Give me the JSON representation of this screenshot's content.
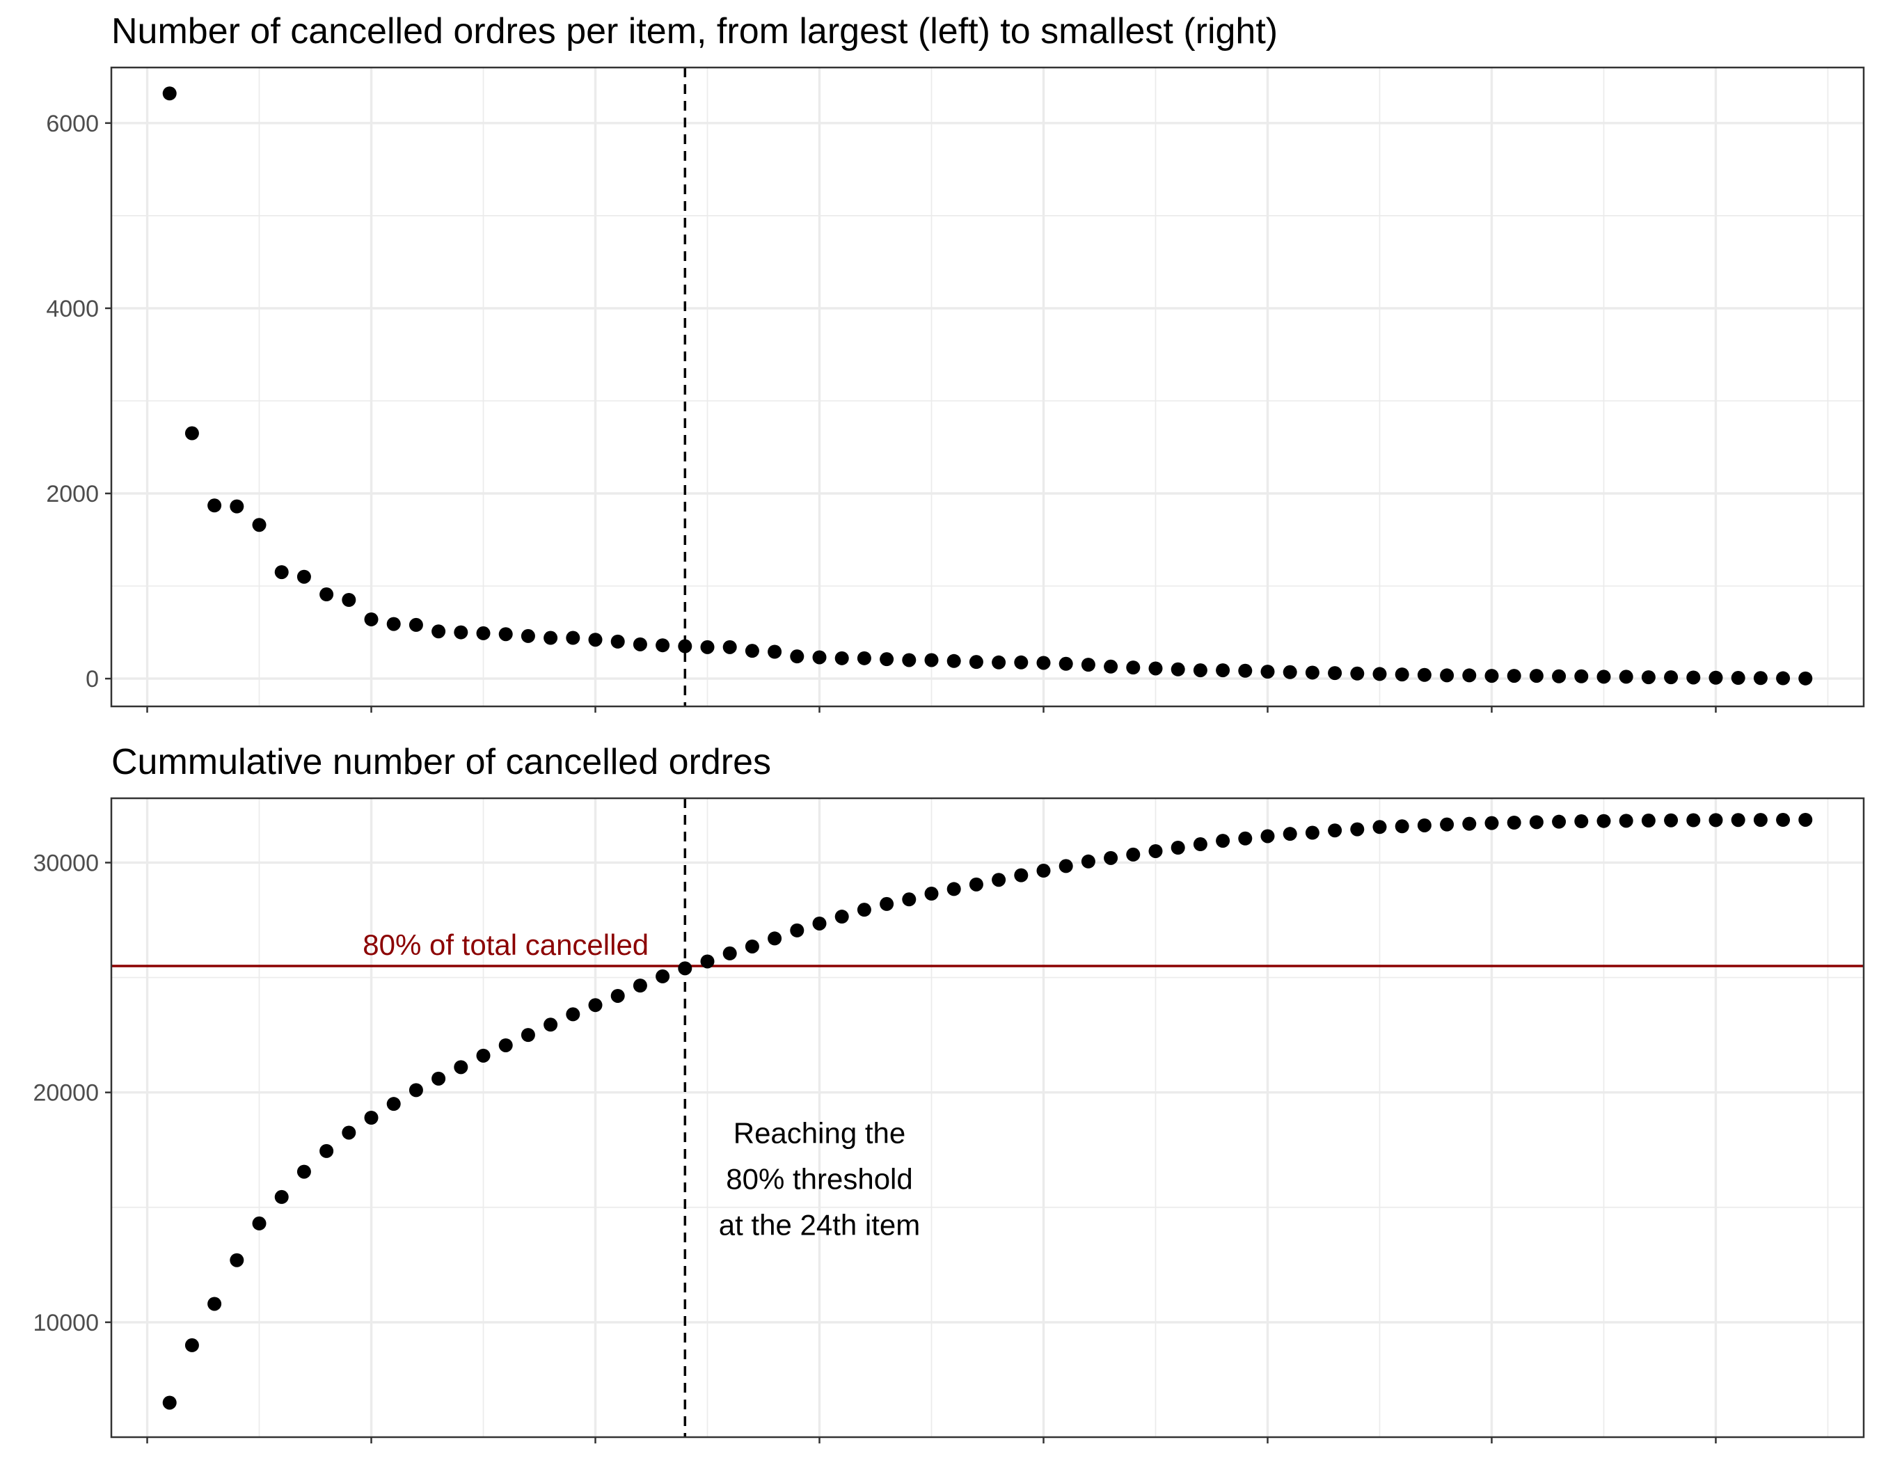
{
  "chart_data": [
    {
      "type": "scatter",
      "title": "Number of cancelled ordres per item, from largest (left) to smallest (right)",
      "xlabel": "",
      "ylabel": "",
      "x_tick_labels_shown": false,
      "grid": true,
      "xlim": [
        -1.6,
        76.6
      ],
      "ylim": [
        -300,
        6600
      ],
      "yticks": [
        0,
        2000,
        4000,
        6000
      ],
      "ytick_labels": [
        "0",
        "2000",
        "4000",
        "6000"
      ],
      "reference_lines": [
        {
          "orientation": "vertical",
          "x": 24,
          "style": "dashed",
          "color": "#000000"
        }
      ],
      "x": [
        1,
        2,
        3,
        4,
        5,
        6,
        7,
        8,
        9,
        10,
        11,
        12,
        13,
        14,
        15,
        16,
        17,
        18,
        19,
        20,
        21,
        22,
        23,
        24,
        25,
        26,
        27,
        28,
        29,
        30,
        31,
        32,
        33,
        34,
        35,
        36,
        37,
        38,
        39,
        40,
        41,
        42,
        43,
        44,
        45,
        46,
        47,
        48,
        49,
        50,
        51,
        52,
        53,
        54,
        55,
        56,
        57,
        58,
        59,
        60,
        61,
        62,
        63,
        64,
        65,
        66,
        67,
        68,
        69,
        70,
        71,
        72,
        73,
        74
      ],
      "values": [
        6320,
        2650,
        1870,
        1860,
        1660,
        1150,
        1100,
        910,
        850,
        640,
        590,
        580,
        510,
        500,
        490,
        480,
        460,
        440,
        440,
        420,
        400,
        370,
        360,
        350,
        340,
        340,
        300,
        290,
        240,
        230,
        220,
        220,
        210,
        200,
        200,
        190,
        180,
        175,
        175,
        170,
        160,
        150,
        130,
        120,
        110,
        100,
        90,
        90,
        85,
        75,
        70,
        65,
        60,
        55,
        50,
        45,
        40,
        35,
        35,
        30,
        30,
        30,
        25,
        25,
        20,
        20,
        15,
        15,
        12,
        10,
        8,
        6,
        4,
        2
      ]
    },
    {
      "type": "scatter",
      "title": "Cummulative number of cancelled ordres",
      "xlabel": "",
      "ylabel": "",
      "x_tick_labels_shown": false,
      "grid": true,
      "xlim": [
        -1.6,
        76.6
      ],
      "ylim": [
        5000,
        32800
      ],
      "yticks": [
        10000,
        20000,
        30000
      ],
      "ytick_labels": [
        "10000",
        "20000",
        "30000"
      ],
      "reference_lines": [
        {
          "orientation": "vertical",
          "x": 24,
          "style": "dashed",
          "color": "#000000"
        },
        {
          "orientation": "horizontal",
          "y": 25500,
          "style": "solid",
          "color": "#8b0000",
          "label": "80% of total cancelled"
        }
      ],
      "annotation": [
        "Reaching the",
        "80% threshold",
        "at the 24th item"
      ],
      "x": [
        1,
        2,
        3,
        4,
        5,
        6,
        7,
        8,
        9,
        10,
        11,
        12,
        13,
        14,
        15,
        16,
        17,
        18,
        19,
        20,
        21,
        22,
        23,
        24,
        25,
        26,
        27,
        28,
        29,
        30,
        31,
        32,
        33,
        34,
        35,
        36,
        37,
        38,
        39,
        40,
        41,
        42,
        43,
        44,
        45,
        46,
        47,
        48,
        49,
        50,
        51,
        52,
        53,
        54,
        55,
        56,
        57,
        58,
        59,
        60,
        61,
        62,
        63,
        64,
        65,
        66,
        67,
        68,
        69,
        70,
        71,
        72,
        73,
        74
      ],
      "values": [
        6500,
        9000,
        10800,
        12700,
        14300,
        15450,
        16550,
        17450,
        18250,
        18900,
        19500,
        20100,
        20600,
        21100,
        21600,
        22050,
        22500,
        22950,
        23400,
        23800,
        24200,
        24650,
        25050,
        25400,
        25700,
        26050,
        26350,
        26700,
        27050,
        27350,
        27650,
        27950,
        28200,
        28400,
        28650,
        28850,
        29050,
        29250,
        29450,
        29650,
        29850,
        30050,
        30200,
        30350,
        30500,
        30650,
        30800,
        30950,
        31050,
        31150,
        31250,
        31300,
        31400,
        31450,
        31550,
        31580,
        31620,
        31660,
        31690,
        31720,
        31740,
        31760,
        31780,
        31800,
        31810,
        31820,
        31830,
        31840,
        31845,
        31850,
        31855,
        31858,
        31860,
        31862
      ]
    }
  ]
}
